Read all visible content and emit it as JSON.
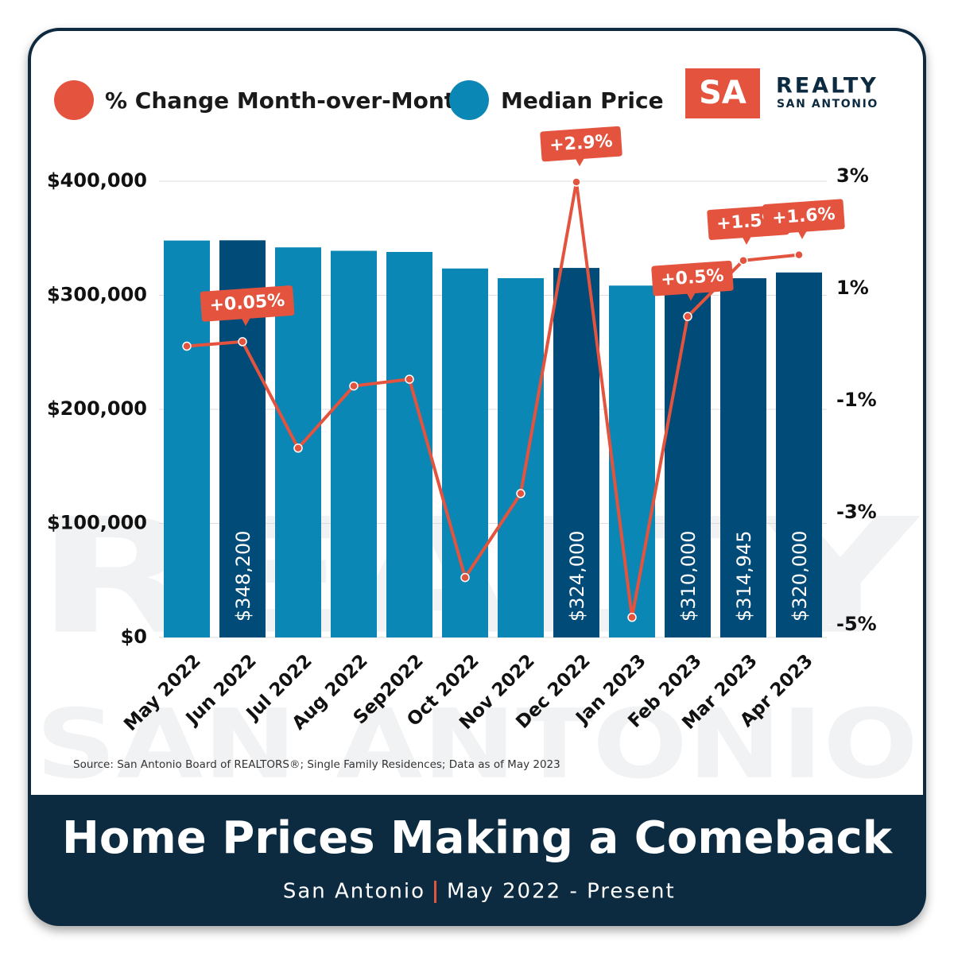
{
  "chart_data": {
    "type": "bar",
    "title": "Home Prices Making a Comeback",
    "subtitle": [
      "San Antonio",
      "May 2022 - Present"
    ],
    "source": "Source: San Antonio Board of REALTORS®; Single Family Residences; Data as of May 2023",
    "logo": {
      "mark": "SA",
      "name": "REALTY",
      "place": "SAN ANTONIO"
    },
    "watermark": [
      "REALTY",
      "SAN ANTONIO"
    ],
    "categories": [
      "May 2022",
      "Jun 2022",
      "Jul 2022",
      "Aug 2022",
      "Sep2022",
      "Oct 2022",
      "Nov 2022",
      "Dec 2022",
      "Jan 2023",
      "Feb 2023",
      "Mar 2023",
      "Apr 2023"
    ],
    "series": [
      {
        "name": "% Change Month-over-Month",
        "type": "line",
        "axis": "y2",
        "color": "#e4533e",
        "values": [
          -0.03,
          0.05,
          -1.85,
          -0.74,
          -0.62,
          -4.16,
          -2.66,
          2.9,
          -4.87,
          0.5,
          1.5,
          1.6
        ],
        "value_labels": [
          null,
          "+0.05%",
          null,
          null,
          null,
          null,
          null,
          "+2.9%",
          null,
          "+0.5%",
          "+1.5%",
          "+1.6%"
        ]
      },
      {
        "name": "Median Price",
        "type": "bar",
        "color": "#0a87b4",
        "colors": [
          "#0a87b4",
          "#004b78",
          "#0a87b4",
          "#0a87b4",
          "#0a87b4",
          "#0a87b4",
          "#0a87b4",
          "#004b78",
          "#0a87b4",
          "#004b78",
          "#004b78",
          "#004b78"
        ],
        "values": [
          348000,
          348200,
          342000,
          339000,
          338000,
          323500,
          315000,
          324000,
          308500,
          310000,
          314945,
          320000
        ],
        "value_labels": [
          null,
          "$348,200",
          null,
          null,
          null,
          null,
          null,
          "$324,000",
          null,
          "$310,000",
          "$314,945",
          "$320,000"
        ]
      }
    ],
    "ylim": [
      0,
      400000
    ],
    "yticks": [
      {
        "value": 0,
        "label": "$0"
      },
      {
        "value": 100000,
        "label": "$100,000"
      },
      {
        "value": 200000,
        "label": "$200,000"
      },
      {
        "value": 300000,
        "label": "$300,000"
      },
      {
        "value": 400000,
        "label": "$400,000"
      }
    ],
    "y2lim": [
      -5.23,
      3
    ],
    "y2ticks": [
      {
        "value": 3,
        "label": "3%"
      },
      {
        "value": 1,
        "label": "1%"
      },
      {
        "value": -1,
        "label": "-1%"
      },
      {
        "value": -3,
        "label": "-3%"
      },
      {
        "value": -5,
        "label": "-5%"
      }
    ],
    "grid": true
  }
}
